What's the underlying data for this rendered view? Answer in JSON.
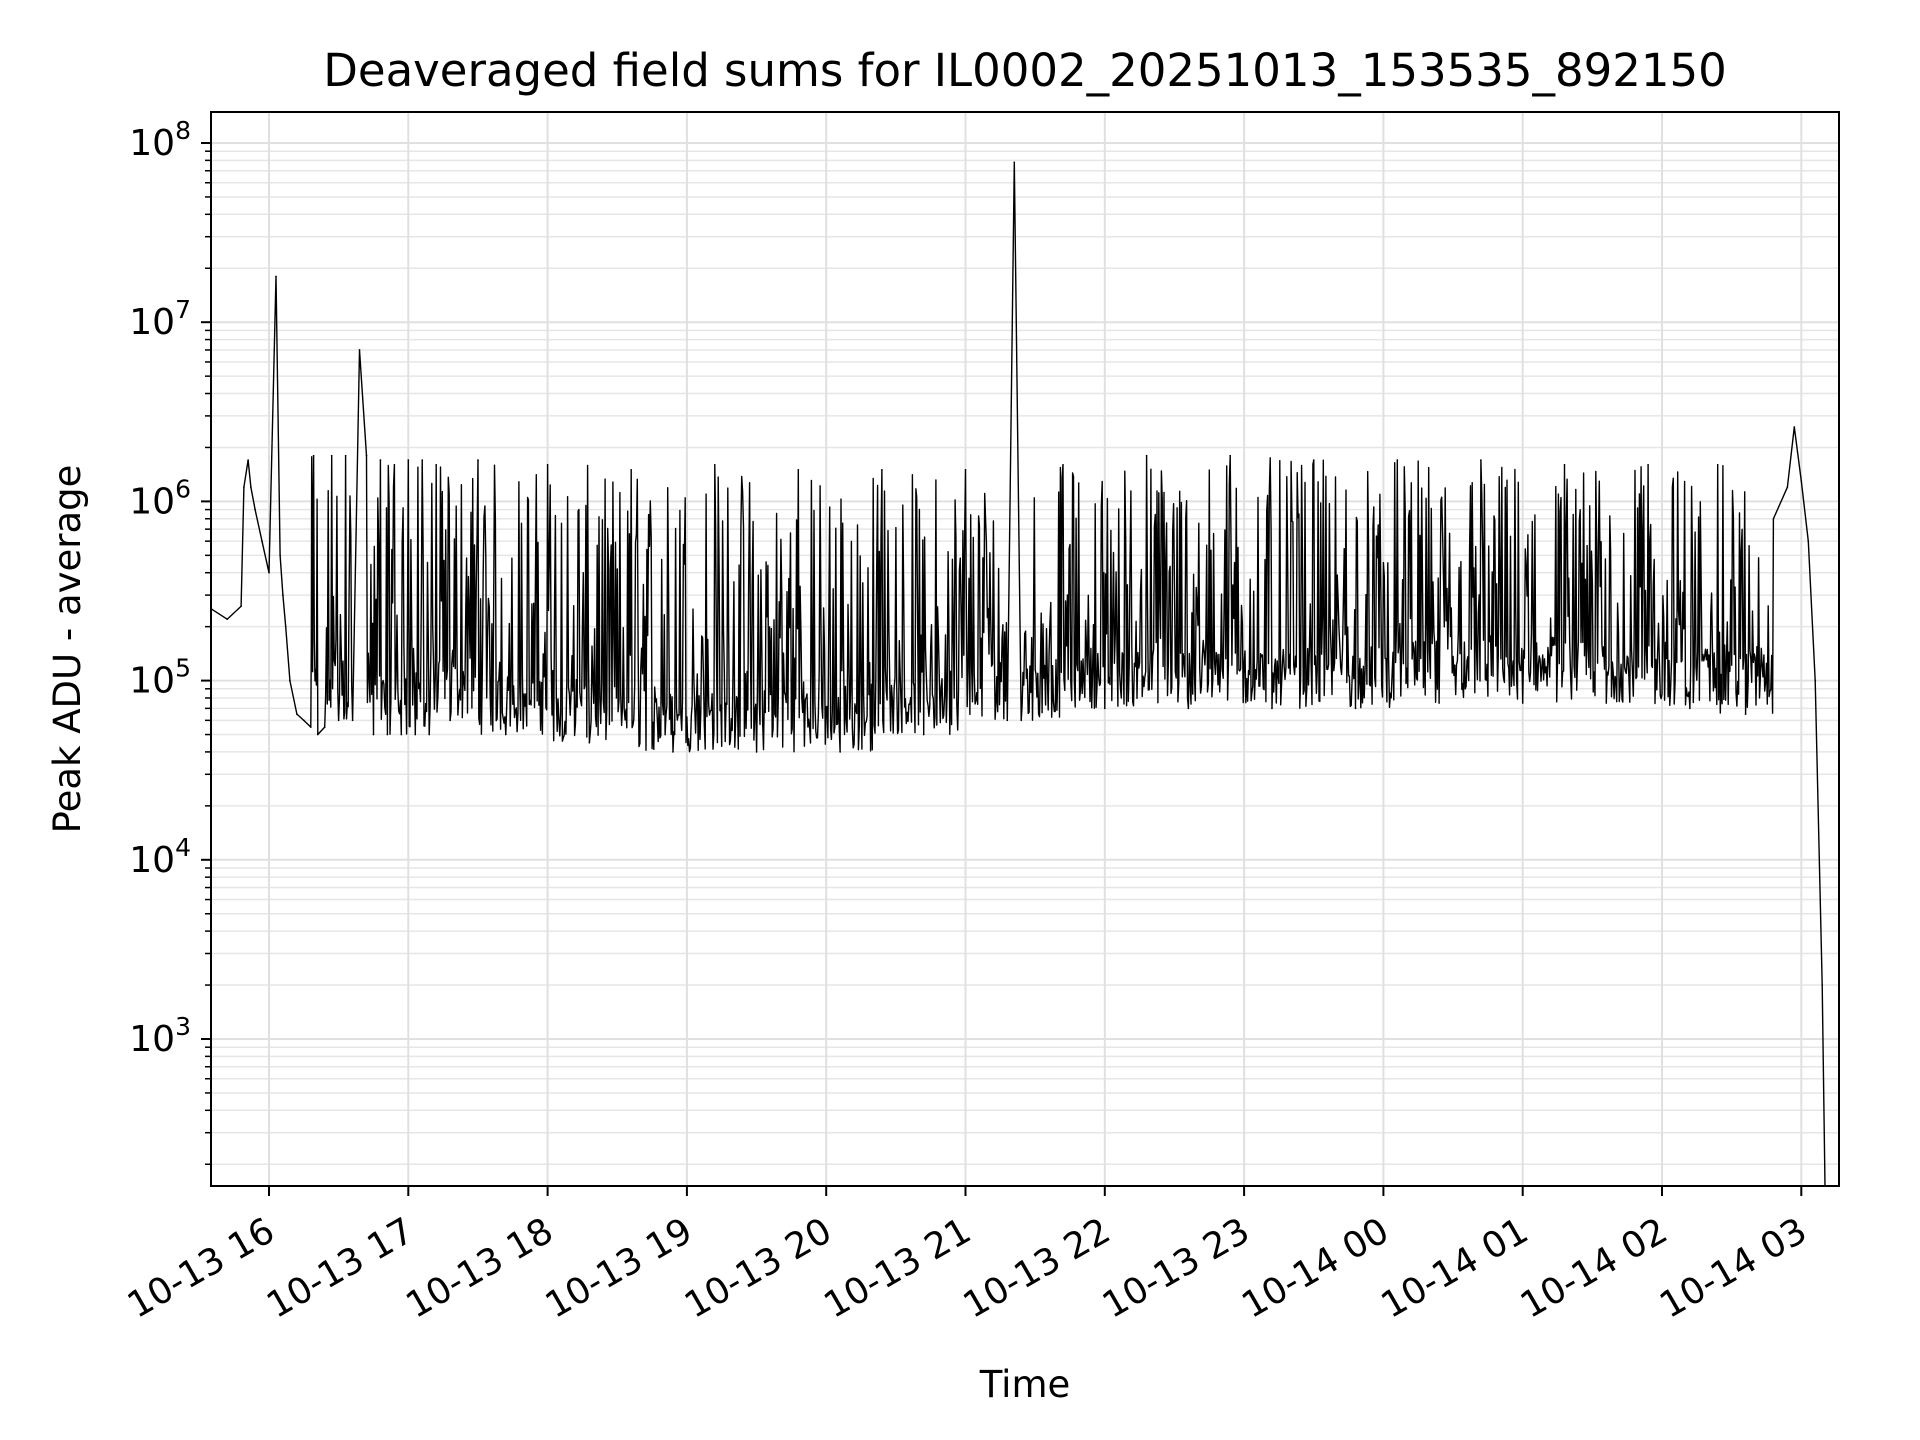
{
  "chart_data": {
    "type": "line",
    "title": "Deaveraged field sums for IL0002_20251013_153535_892150",
    "xlabel": "Time",
    "ylabel": "Peak ADU - average",
    "yscale": "log",
    "ylim": [
      140,
      140000000
    ],
    "grid": true,
    "line_color": "#000000",
    "x_tick_labels": [
      "10-13 16",
      "10-13 17",
      "10-13 18",
      "10-13 19",
      "10-13 20",
      "10-13 21",
      "10-13 22",
      "10-13 23",
      "10-14 00",
      "10-14 01",
      "10-14 02",
      "10-14 03"
    ],
    "y_ticks": [
      {
        "base": "10",
        "exp": "3"
      },
      {
        "base": "10",
        "exp": "4"
      },
      {
        "base": "10",
        "exp": "5"
      },
      {
        "base": "10",
        "exp": "6"
      },
      {
        "base": "10",
        "exp": "7"
      },
      {
        "base": "10",
        "exp": "8"
      }
    ],
    "x_range_hours": [
      -0.41,
      11.32
    ],
    "series": [
      {
        "name": "field sums",
        "x_hours": [
          -0.41,
          -0.3,
          -0.2,
          -0.18,
          -0.15,
          -0.13,
          -0.1,
          -0.05,
          0.0,
          0.05,
          0.08,
          0.1,
          0.12,
          0.15,
          0.2,
          0.25,
          0.3,
          0.32,
          0.35,
          0.4,
          0.45,
          0.5,
          0.55,
          0.6,
          0.65,
          0.7,
          0.75,
          0.8,
          0.85,
          0.9,
          0.95,
          1.0,
          1.05,
          1.1,
          1.15,
          1.2,
          1.3,
          1.5,
          1.7,
          2.0,
          2.3,
          2.6,
          2.9,
          3.2,
          3.5,
          3.8,
          4.1,
          4.4,
          4.7,
          5.0,
          5.3,
          5.35,
          5.4,
          5.7,
          6.0,
          6.3,
          6.6,
          6.9,
          7.2,
          7.5,
          7.8,
          8.1,
          8.4,
          8.7,
          9.0,
          9.3,
          9.6,
          9.9,
          10.2,
          10.4,
          10.6,
          10.8,
          10.9,
          10.95,
          11.0,
          11.05,
          11.1,
          11.15,
          11.17
        ],
        "y": [
          250000,
          220000,
          260000,
          1200000,
          1700000,
          1200000,
          900000,
          600000,
          400000,
          18000000,
          500000,
          300000,
          200000,
          100000,
          65000,
          60000,
          55000,
          1800000,
          50000,
          55000,
          1800000,
          60000,
          1800000,
          60000,
          7000000,
          1800000,
          50000,
          1700000,
          50000,
          1600000,
          50000,
          1700000,
          50000,
          1700000,
          50000,
          1600000,
          60000,
          1700000,
          50000,
          1600000,
          45000,
          1500000,
          40000,
          1600000,
          40000,
          1500000,
          40000,
          1500000,
          50000,
          1500000,
          60000,
          78000000,
          60000,
          1600000,
          70000,
          1800000,
          70000,
          1800000,
          70000,
          1700000,
          70000,
          1700000,
          75000,
          1700000,
          75000,
          1600000,
          75000,
          1600000,
          70000,
          1600000,
          65000,
          800000,
          1200000,
          2600000,
          1300000,
          600000,
          100000,
          2000,
          150
        ]
      }
    ]
  }
}
